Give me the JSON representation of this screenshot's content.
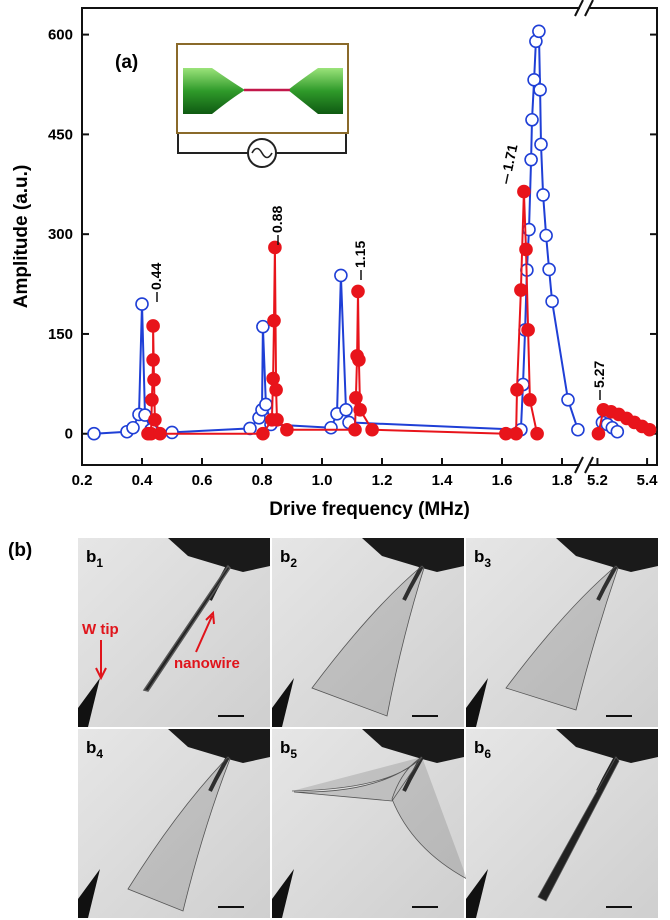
{
  "chart_data": {
    "type": "line",
    "panel_label": "(a)",
    "xlabel": "Drive frequency (MHz)",
    "ylabel": "Amplitude (a.u.)",
    "xlim": [
      0.2,
      5.44
    ],
    "xbreak": [
      1.86,
      5.17
    ],
    "xticks": [
      0.2,
      0.4,
      0.6,
      0.8,
      {
        "value": 1,
        "label": "1.0"
      },
      1.2,
      1.4,
      1.6,
      1.8,
      5.2,
      5.4
    ],
    "ylim": [
      -47,
      640
    ],
    "yticks": [
      0,
      150,
      300,
      450,
      600
    ],
    "annotations": [
      "0.44",
      "0.88",
      "1.15",
      "1.71",
      "5.27"
    ],
    "series": [
      {
        "color": "#1f3fd6",
        "marker": "open",
        "x": [
          0.24,
          0.35,
          0.37,
          0.39,
          0.4,
          0.41,
          0.43,
          0.5,
          0.76,
          0.79,
          0.8,
          0.803,
          0.813,
          0.83,
          1.03,
          1.05,
          1.063,
          1.08,
          1.09,
          1.663,
          1.67,
          1.677,
          1.683,
          1.69,
          1.697,
          1.7,
          1.707,
          1.713,
          1.723,
          1.727,
          1.73,
          1.737,
          1.747,
          1.757,
          1.767,
          1.82,
          1.853,
          5.22,
          5.24,
          5.26,
          5.28
        ],
        "values": [
          0,
          3,
          9,
          29,
          195,
          28,
          6,
          2,
          8,
          24,
          36,
          161,
          44,
          14,
          9,
          30,
          238,
          36,
          17,
          6,
          74,
          156,
          246,
          307,
          412,
          472,
          532,
          590,
          605,
          517,
          435,
          359,
          298,
          247,
          199,
          51,
          6,
          17,
          14,
          9,
          3
        ]
      },
      {
        "color": "#e8141b",
        "marker": "filled",
        "x": [
          0.42,
          0.43,
          0.433,
          0.437,
          0.437,
          0.44,
          0.443,
          0.46,
          0.803,
          0.833,
          0.837,
          0.84,
          0.843,
          0.847,
          0.85,
          0.883,
          1.11,
          1.113,
          1.117,
          1.12,
          1.123,
          1.127,
          1.167,
          1.613,
          1.647,
          1.65,
          1.663,
          1.673,
          1.68,
          1.687,
          1.693,
          1.717,
          5.204,
          5.224,
          5.255,
          5.286,
          5.318,
          5.349,
          5.38,
          5.41
        ],
        "values": [
          0,
          0,
          51,
          111,
          162,
          81,
          21,
          0,
          0,
          21,
          83,
          170,
          280,
          66,
          21,
          6,
          6,
          54,
          117,
          214,
          111,
          36,
          6,
          0,
          0,
          66,
          216,
          364,
          277,
          156,
          51,
          0,
          0,
          36,
          33,
          29,
          23,
          17,
          11,
          6
        ]
      }
    ]
  },
  "panel_b": {
    "label": "(b)",
    "images": [
      {
        "main": "b",
        "sub": "1"
      },
      {
        "main": "b",
        "sub": "2"
      },
      {
        "main": "b",
        "sub": "3"
      },
      {
        "main": "b",
        "sub": "4"
      },
      {
        "main": "b",
        "sub": "5"
      },
      {
        "main": "b",
        "sub": "6"
      }
    ],
    "callouts": [
      "W tip",
      "nanowire"
    ]
  }
}
